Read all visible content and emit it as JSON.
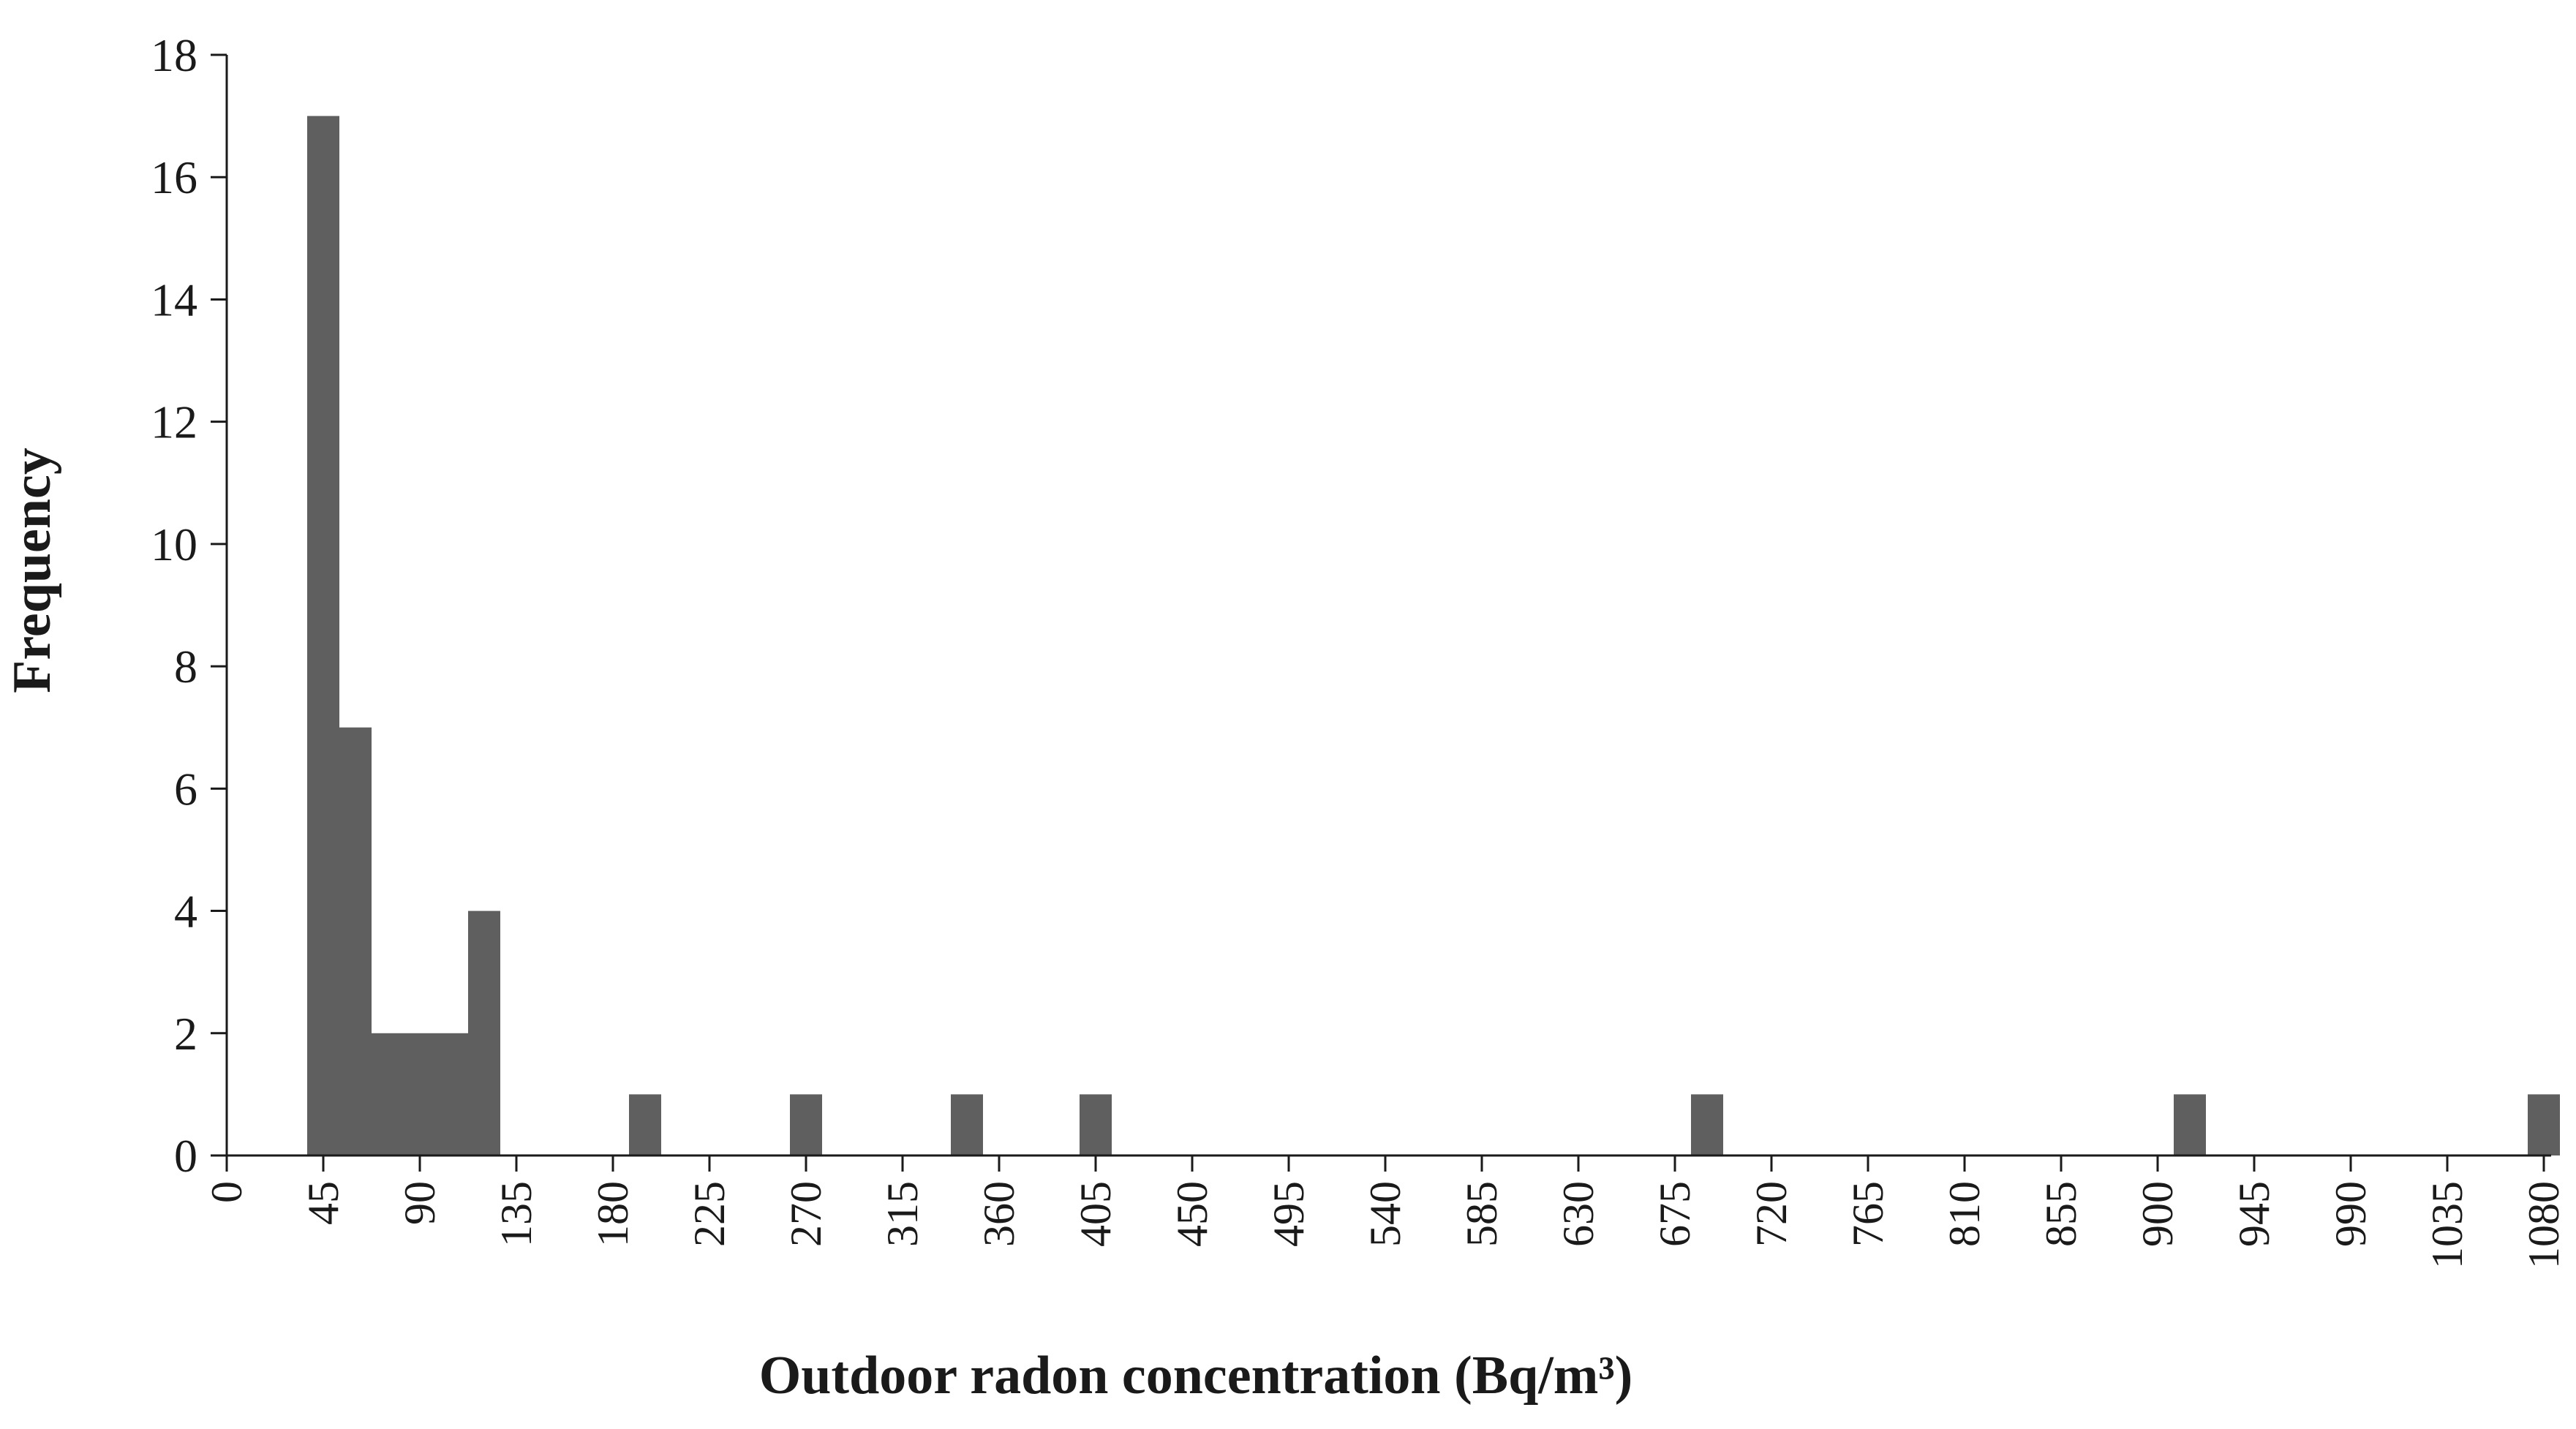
{
  "chart_data": {
    "type": "bar",
    "title": "",
    "xlabel": "Outdoor radon concentration (Bq/m³)",
    "ylabel": "Frequency",
    "ylim": [
      0,
      18
    ],
    "yticks": [
      "0",
      "2",
      "4",
      "6",
      "8",
      "10",
      "12",
      "14",
      "16",
      "18"
    ],
    "xlim": [
      0,
      1080
    ],
    "xticks": [
      "0",
      "45",
      "90",
      "135",
      "180",
      "225",
      "270",
      "315",
      "360",
      "405",
      "450",
      "495",
      "540",
      "585",
      "630",
      "675",
      "720",
      "765",
      "810",
      "855",
      "900",
      "945",
      "990",
      "1035",
      "1080"
    ],
    "bin_width": 15,
    "bars": [
      {
        "x": 45,
        "value": 17
      },
      {
        "x": 60,
        "value": 7
      },
      {
        "x": 75,
        "value": 2
      },
      {
        "x": 90,
        "value": 2
      },
      {
        "x": 105,
        "value": 2
      },
      {
        "x": 120,
        "value": 4
      },
      {
        "x": 195,
        "value": 1
      },
      {
        "x": 270,
        "value": 1
      },
      {
        "x": 345,
        "value": 1
      },
      {
        "x": 405,
        "value": 1
      },
      {
        "x": 690,
        "value": 1
      },
      {
        "x": 915,
        "value": 1
      },
      {
        "x": 1080,
        "value": 1
      }
    ],
    "grid": false,
    "legend": "none",
    "bar_color": "#5f5f5f",
    "axis_color": "#1a1a1a"
  }
}
